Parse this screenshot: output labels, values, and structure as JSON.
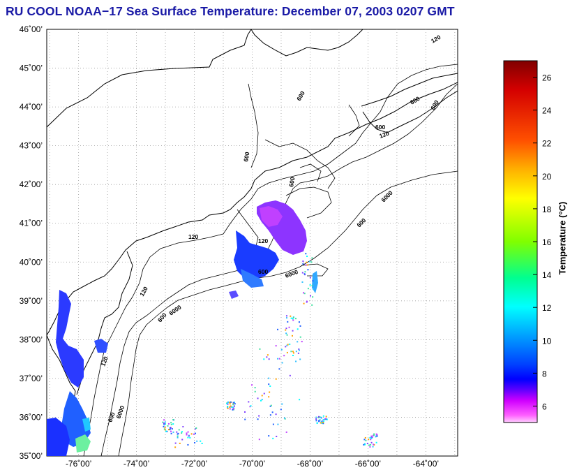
{
  "title": "RU COOL  NOAA−17  Sea Surface Temperature:  December 07, 2003 0207 GMT",
  "map": {
    "lat_labels": [
      "46˚00’",
      "45˚00’",
      "44˚00’",
      "43˚00’",
      "42˚00’",
      "41˚00’",
      "40˚00’",
      "39˚00’",
      "38˚00’",
      "37˚00’",
      "36˚00’",
      "35˚00’"
    ],
    "lon_labels": [
      "-76˚00’",
      "-74˚00’",
      "-72˚00’",
      "-70˚00’",
      "-68˚00’",
      "-66˚00’",
      "-64˚00’"
    ],
    "lat_range": [
      35,
      46
    ],
    "lon_range": [
      -77.1,
      -62.9
    ],
    "grid": true,
    "contour_labels": [
      "120",
      "600",
      "6000"
    ]
  },
  "colorbar": {
    "title": "Temperature (°C)",
    "range": [
      5,
      27
    ],
    "ticks": [
      "26",
      "24",
      "22",
      "20",
      "18",
      "16",
      "14",
      "12",
      "10",
      "8",
      "6"
    ],
    "colors": [
      "#8b0000",
      "#e00000",
      "#ff8c00",
      "#ffff00",
      "#7fff00",
      "#00ffb0",
      "#00c8ff",
      "#0060ff",
      "#0000ff",
      "#ff00ff",
      "#ffb0ff"
    ]
  }
}
